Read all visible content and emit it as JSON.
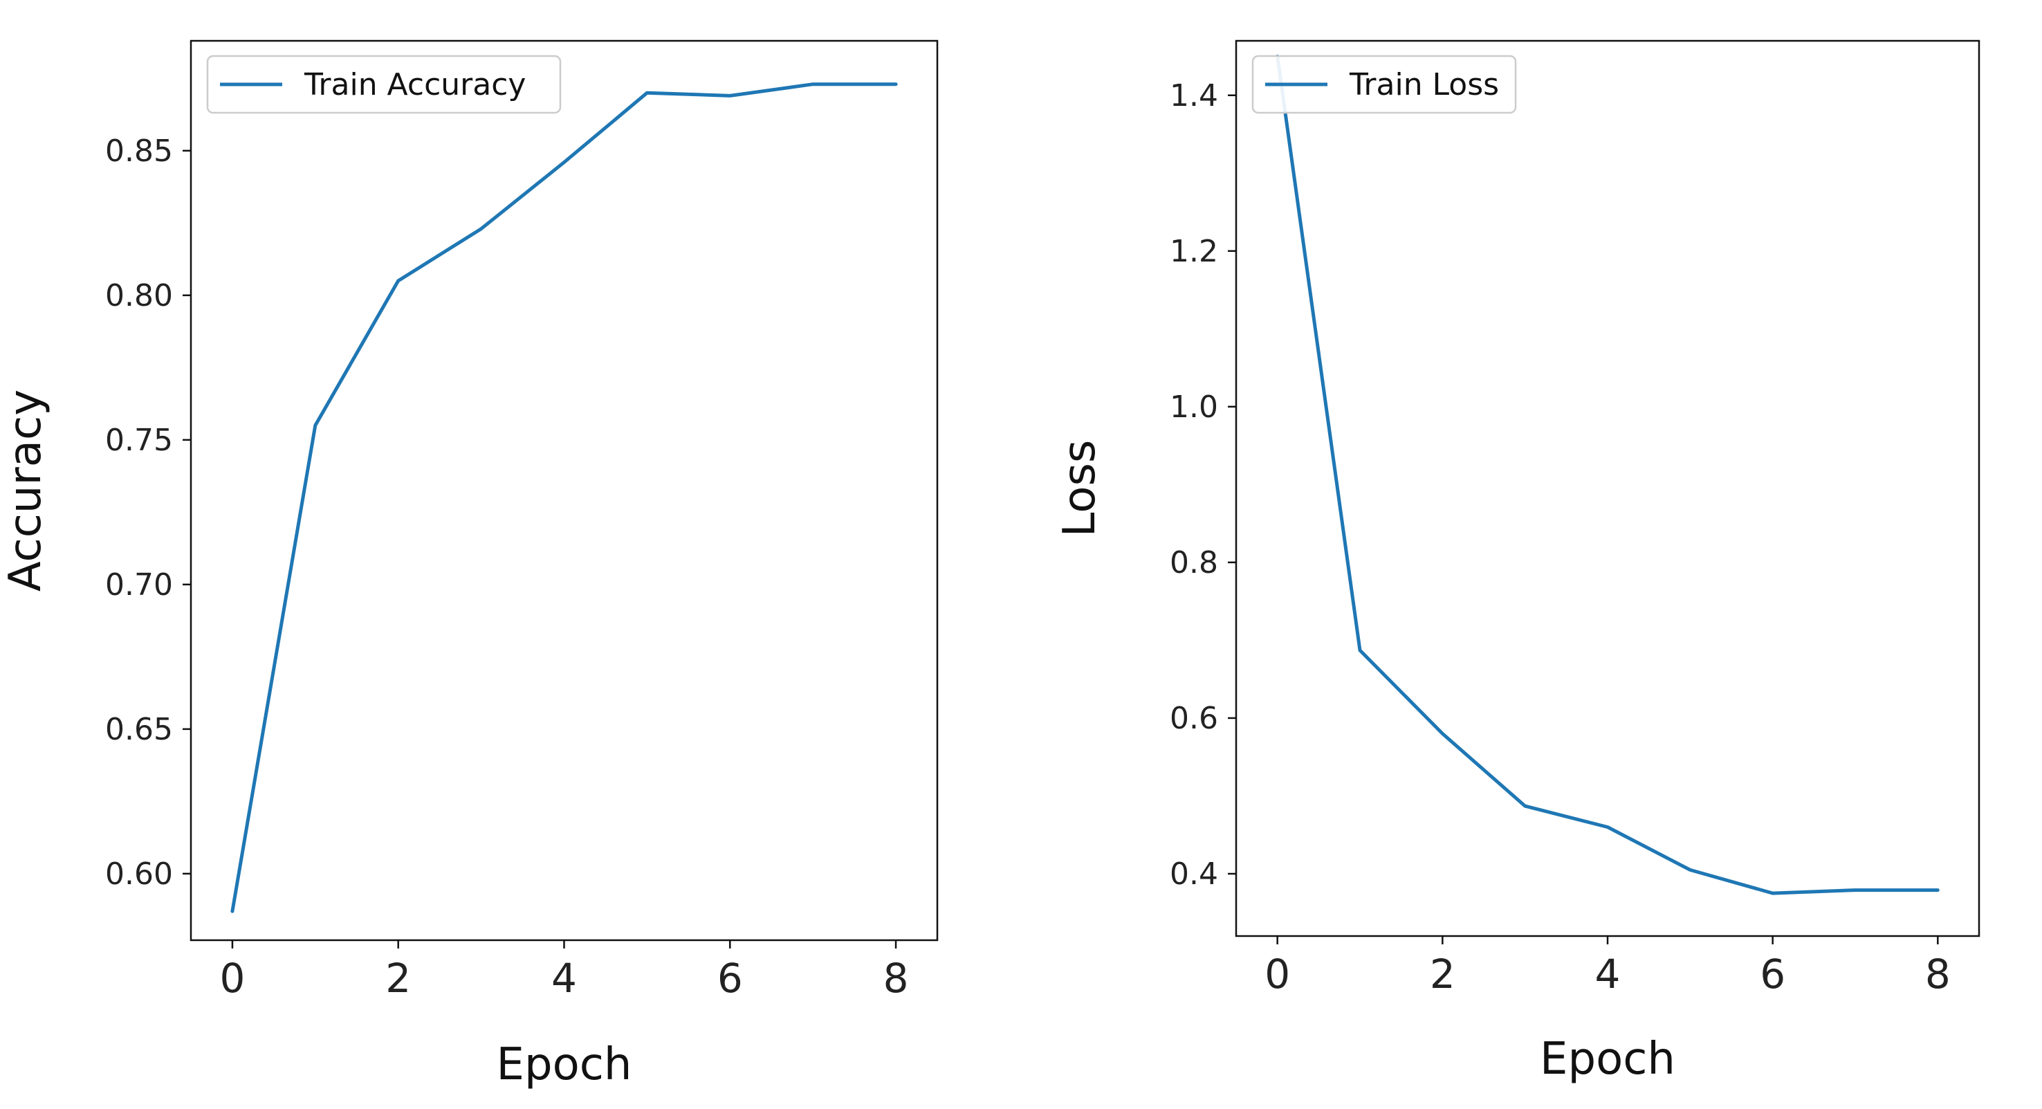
{
  "chart_data": [
    {
      "type": "line",
      "title": "",
      "xlabel": "Epoch",
      "ylabel": "Accuracy",
      "xlim": [
        -0.5,
        8.5
      ],
      "ylim": [
        0.577,
        0.888
      ],
      "xticks": [
        "0",
        "2",
        "4",
        "6",
        "8"
      ],
      "yticks": [
        "0.60",
        "0.65",
        "0.70",
        "0.75",
        "0.80",
        "0.85"
      ],
      "legend_position": "top-left",
      "grid": false,
      "series": [
        {
          "name": "Train Accuracy",
          "color": "#1f77b4",
          "x": [
            0,
            1,
            2,
            3,
            4,
            5,
            6,
            7,
            8
          ],
          "values": [
            0.587,
            0.755,
            0.805,
            0.823,
            0.846,
            0.87,
            0.869,
            0.873,
            0.873
          ]
        }
      ]
    },
    {
      "type": "line",
      "title": "",
      "xlabel": "Epoch",
      "ylabel": "Loss",
      "xlim": [
        -0.5,
        8.5
      ],
      "ylim": [
        0.32,
        1.47
      ],
      "xticks": [
        "0",
        "2",
        "4",
        "6",
        "8"
      ],
      "yticks": [
        "0.4",
        "0.6",
        "0.8",
        "1.0",
        "1.2",
        "1.4"
      ],
      "legend_position": "top-left",
      "grid": false,
      "series": [
        {
          "name": "Train Loss",
          "color": "#1f77b4",
          "x": [
            0,
            1,
            2,
            3,
            4,
            5,
            6,
            7,
            8
          ],
          "values": [
            1.45,
            0.687,
            0.58,
            0.487,
            0.46,
            0.405,
            0.375,
            0.379,
            0.379
          ]
        }
      ]
    }
  ]
}
